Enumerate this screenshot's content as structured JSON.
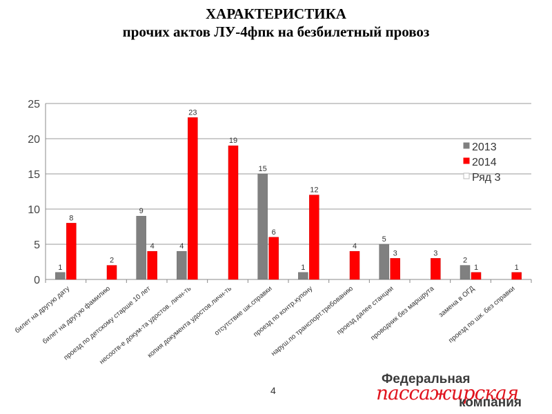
{
  "header": {
    "title_line1": "ХАРАКТЕРИСТИКА",
    "title_line2": "прочих актов  ЛУ-4фпк на безбилетный провоз"
  },
  "page_number": "4",
  "logo": {
    "line1": "Федеральная",
    "script": "пассажирская",
    "line2": "компания"
  },
  "chart_data": {
    "type": "bar",
    "categories": [
      "билет на другую дату",
      "билет на другую фамилию",
      "проезд по детскому старше 10 лет",
      "несоотв-е докум-та удостов. личн-ть",
      "копия документа удостов.личн-ть",
      "отсутствие шк.справки",
      "проезд по контр.купону",
      "наруш.по транспорт.требованию",
      "проезд далее станции",
      "проводник без маршрута",
      "замена в ОГД",
      "проезд по шк. без справки"
    ],
    "series": [
      {
        "name": "2013",
        "color": "#808080",
        "values": [
          1,
          null,
          9,
          4,
          null,
          15,
          1,
          null,
          5,
          null,
          2,
          null
        ]
      },
      {
        "name": "2014",
        "color": "#ff0000",
        "values": [
          8,
          2,
          4,
          23,
          19,
          6,
          12,
          4,
          3,
          3,
          1,
          1
        ]
      },
      {
        "name": "Ряд 3",
        "color": "#ffffff",
        "values": [
          null,
          null,
          null,
          null,
          null,
          null,
          null,
          null,
          null,
          null,
          null,
          null
        ]
      }
    ],
    "ylim": [
      0,
      25
    ],
    "yticks": [
      0,
      5,
      10,
      15,
      20,
      25
    ],
    "grid": true,
    "legend": "right"
  }
}
